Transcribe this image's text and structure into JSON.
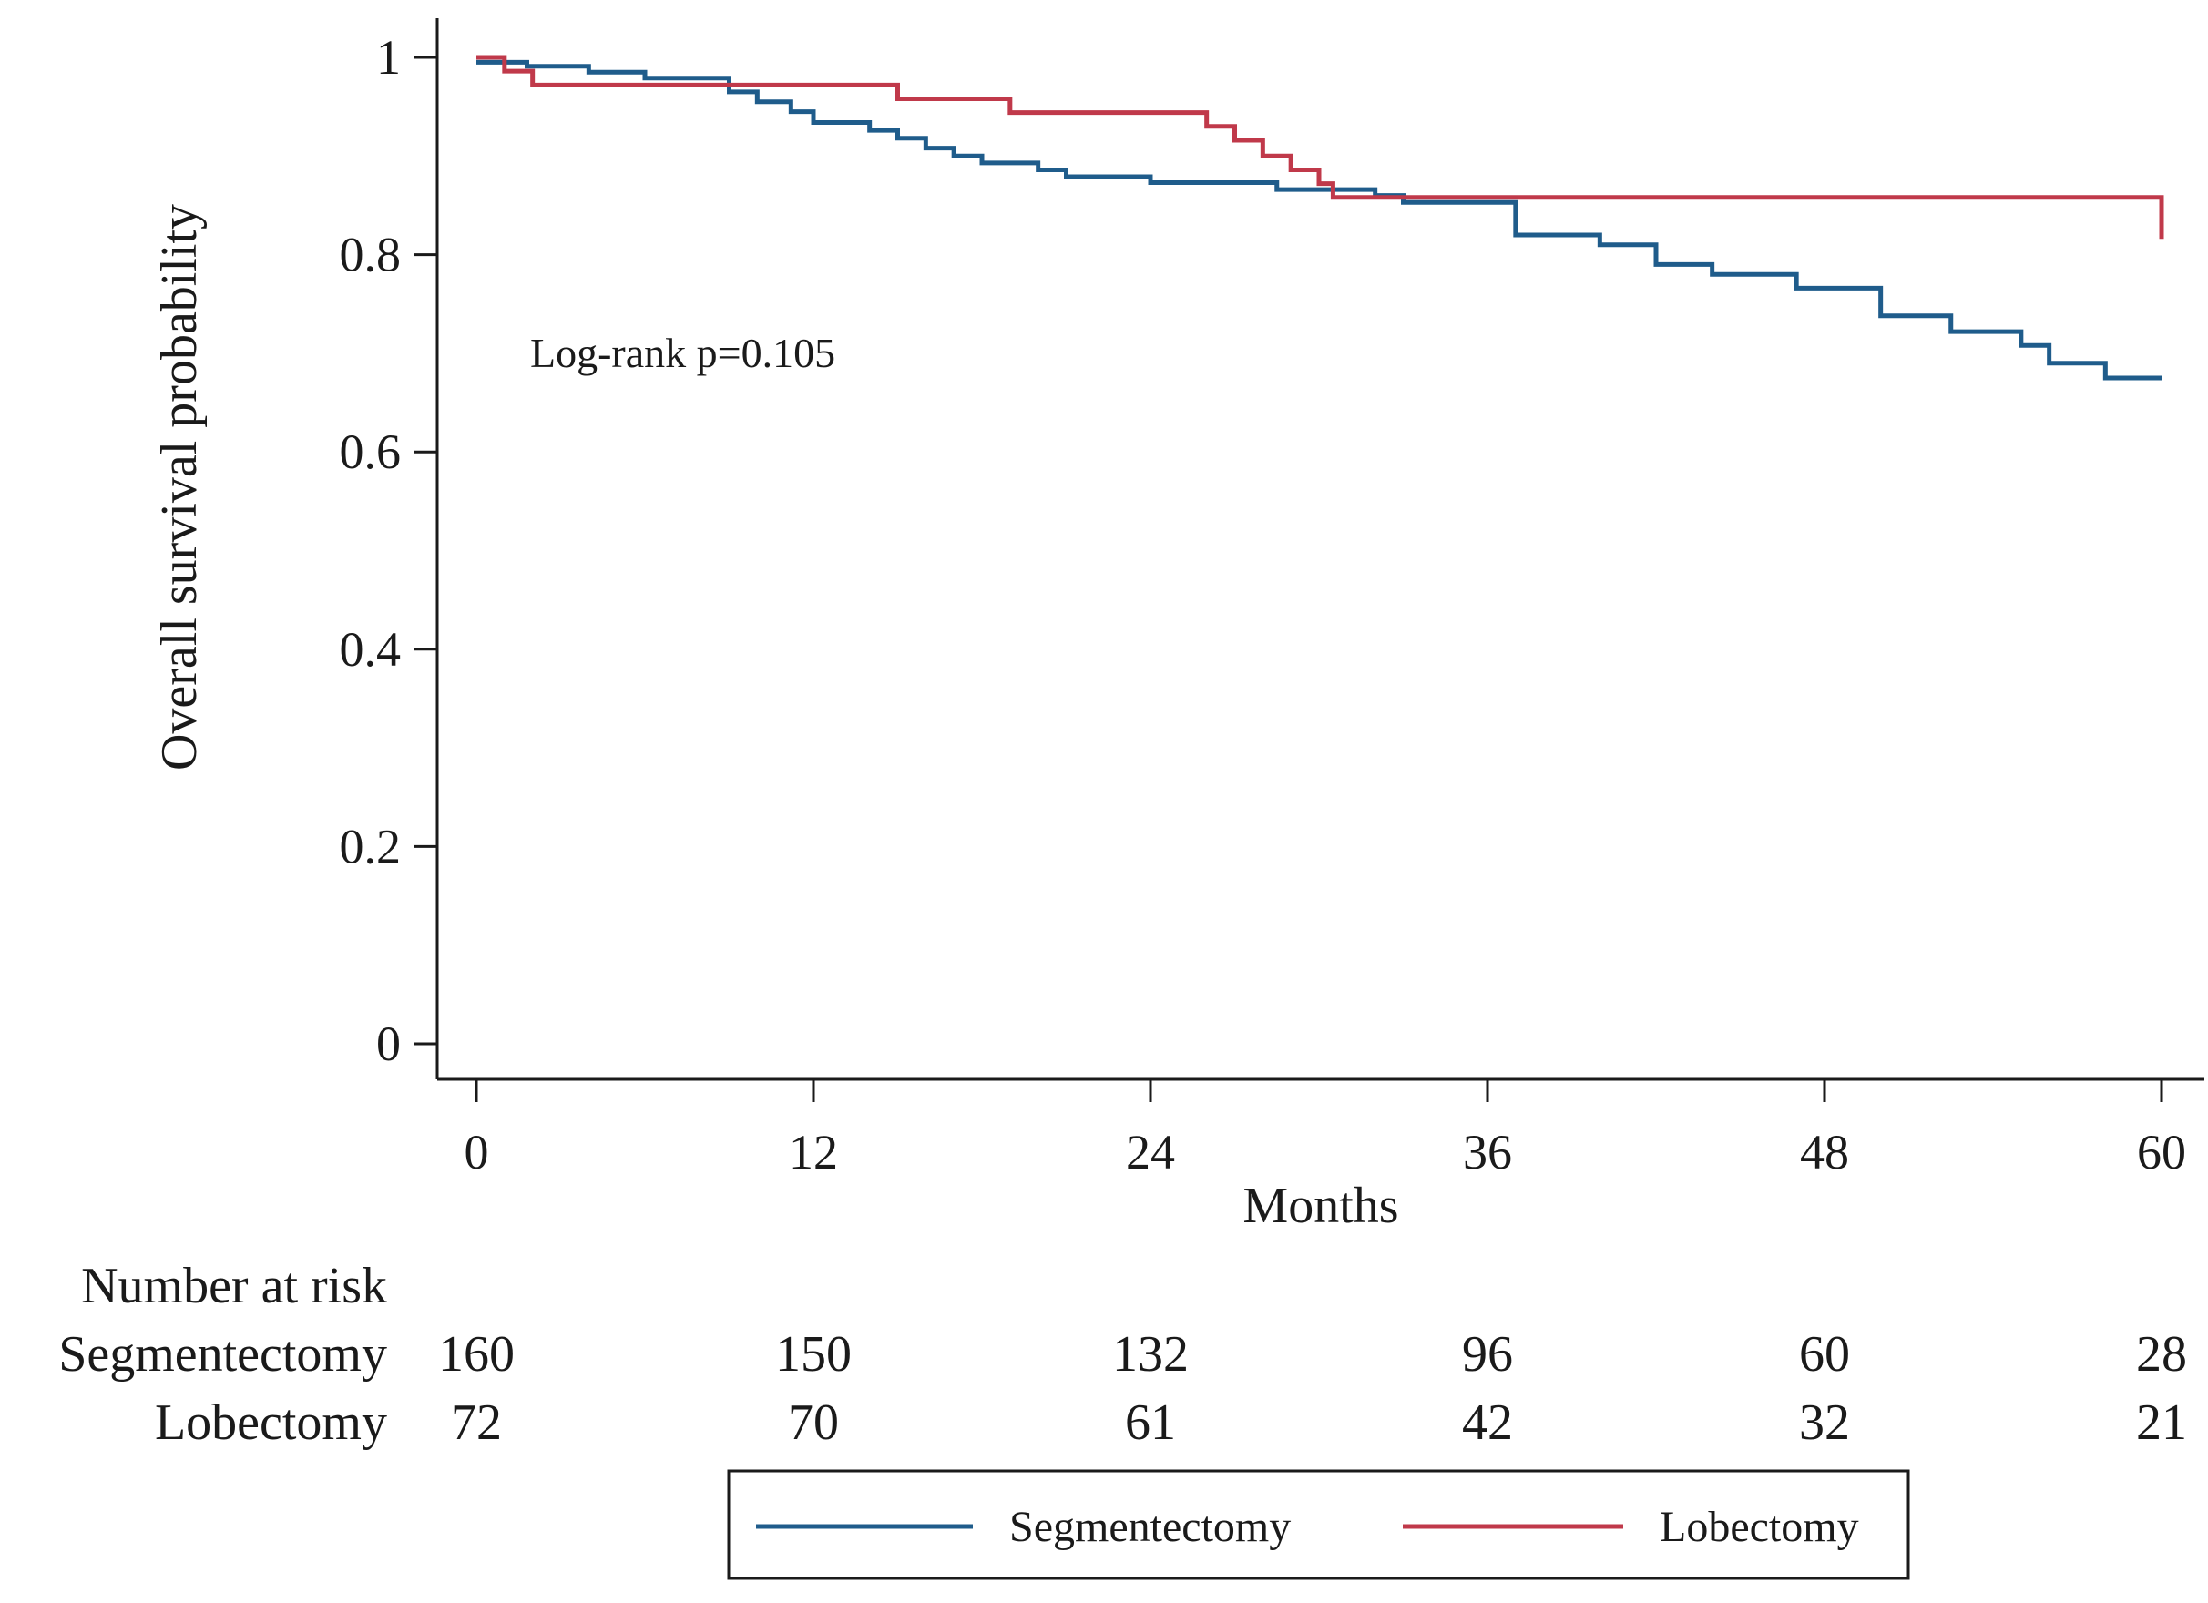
{
  "chart_data": {
    "type": "line",
    "subtype": "kaplan-meier",
    "title": "",
    "xlabel": "Months",
    "ylabel": "Overall survival probability",
    "xlim": [
      0,
      60
    ],
    "ylim": [
      0,
      1
    ],
    "x_ticks": [
      0,
      12,
      24,
      36,
      48,
      60
    ],
    "x_tick_labels": [
      "0",
      "12",
      "24",
      "36",
      "48",
      "60"
    ],
    "y_ticks": [
      0,
      0.2,
      0.4,
      0.6,
      0.8,
      1
    ],
    "y_tick_labels": [
      "0",
      "0.2",
      "0.4",
      "0.6",
      "0.8",
      "1"
    ],
    "grid": false,
    "annotation": "Log-rank p=0.105",
    "legend": {
      "placement": "bottom",
      "entries": [
        "Segmentectomy",
        "Lobectomy"
      ]
    },
    "series": [
      {
        "name": "Segmentectomy",
        "color": "#1f5c8b",
        "steps": [
          [
            0,
            0.995
          ],
          [
            1.8,
            0.991
          ],
          [
            4,
            0.985
          ],
          [
            6,
            0.979
          ],
          [
            9,
            0.965
          ],
          [
            10,
            0.955
          ],
          [
            11.2,
            0.945
          ],
          [
            12,
            0.934
          ],
          [
            14,
            0.926
          ],
          [
            15,
            0.918
          ],
          [
            16,
            0.908
          ],
          [
            17,
            0.9
          ],
          [
            18,
            0.893
          ],
          [
            20,
            0.886
          ],
          [
            21,
            0.879
          ],
          [
            24,
            0.873
          ],
          [
            27,
            0.873
          ],
          [
            28.5,
            0.866
          ],
          [
            32,
            0.86
          ],
          [
            33,
            0.853
          ],
          [
            37,
            0.82
          ],
          [
            40,
            0.81
          ],
          [
            42,
            0.79
          ],
          [
            44,
            0.78
          ],
          [
            47,
            0.766
          ],
          [
            50,
            0.738
          ],
          [
            52.5,
            0.722
          ],
          [
            55,
            0.708
          ],
          [
            56,
            0.69
          ],
          [
            58,
            0.675
          ],
          [
            60,
            0.675
          ]
        ]
      },
      {
        "name": "Lobectomy",
        "color": "#c0394a",
        "steps": [
          [
            0,
            1.0
          ],
          [
            1,
            0.986
          ],
          [
            2,
            0.972
          ],
          [
            15,
            0.958
          ],
          [
            19,
            0.944
          ],
          [
            26,
            0.93
          ],
          [
            27,
            0.916
          ],
          [
            28,
            0.9
          ],
          [
            29,
            0.886
          ],
          [
            30,
            0.872
          ],
          [
            30.5,
            0.858
          ],
          [
            60,
            0.858
          ],
          [
            60,
            0.816
          ]
        ]
      }
    ],
    "risk_table": {
      "header": "Number at risk",
      "rows": [
        {
          "label": "Segmentectomy",
          "values": [
            "160",
            "150",
            "132",
            "96",
            "60",
            "28"
          ]
        },
        {
          "label": "Lobectomy",
          "values": [
            "72",
            "70",
            "61",
            "42",
            "32",
            "21"
          ]
        }
      ]
    }
  }
}
